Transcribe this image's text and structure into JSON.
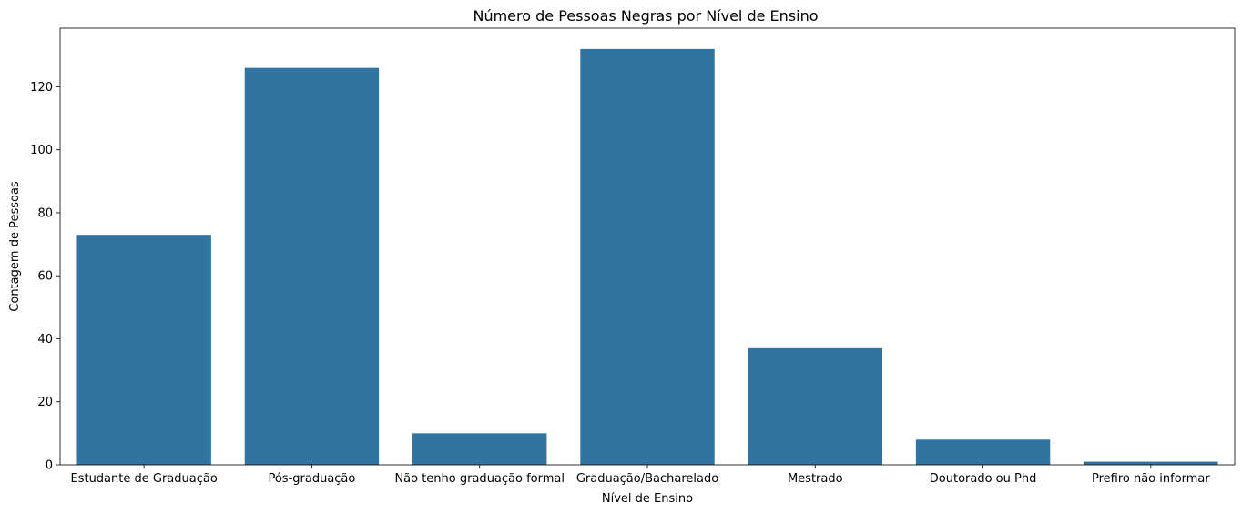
{
  "chart_data": {
    "type": "bar",
    "title": "Número de Pessoas Negras por Nível de Ensino",
    "xlabel": "Nível de Ensino",
    "ylabel": "Contagem de Pessoas",
    "categories": [
      "Estudante de Graduação",
      "Pós-graduação",
      "Não tenho graduação formal",
      "Graduação/Bacharelado",
      "Mestrado",
      "Doutorado ou Phd",
      "Prefiro não informar"
    ],
    "values": [
      73,
      126,
      10,
      132,
      37,
      8,
      1
    ],
    "ylim": [
      0,
      138.6
    ],
    "yticks": [
      0,
      20,
      40,
      60,
      80,
      100,
      120
    ],
    "bar_color": "#3274a1",
    "grid": false,
    "legend": "none"
  }
}
